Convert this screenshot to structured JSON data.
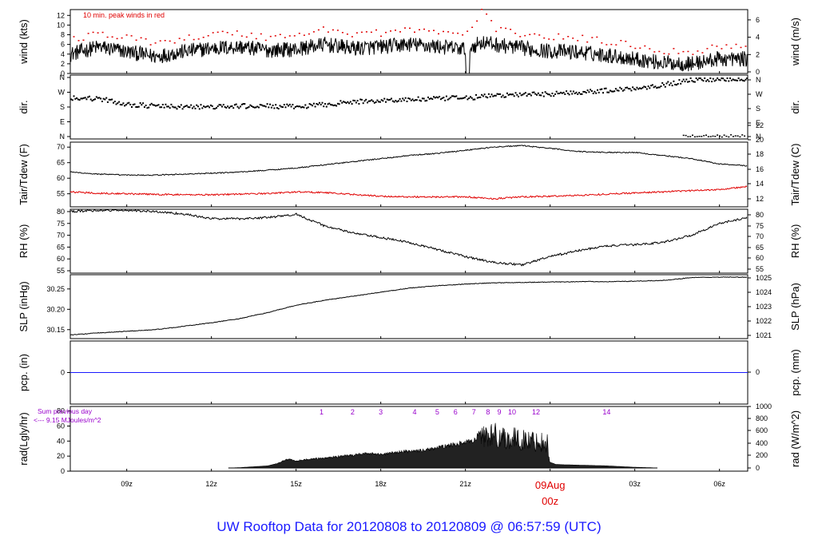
{
  "page_title": "UW Rooftop Data for 20120808  to  20120809 @ 06:57:59  (UTC)",
  "colors": {
    "trace": "#000000",
    "dewpoint": "#e00000",
    "peak": "#e00000",
    "precip": "#1a1aff",
    "rad_text": "#9900cc",
    "title": "#1a1aff",
    "date": "#e00000"
  },
  "chart_data": {
    "type": "line",
    "x_axis": {
      "range_hours": [
        7.0,
        31.0
      ],
      "ticks": [
        {
          "hour": 9,
          "label": "09z"
        },
        {
          "hour": 12,
          "label": "12z"
        },
        {
          "hour": 15,
          "label": "15z"
        },
        {
          "hour": 18,
          "label": "18z"
        },
        {
          "hour": 21,
          "label": "21z"
        },
        {
          "hour": 24,
          "label": "00z",
          "date_label": "09Aug"
        },
        {
          "hour": 27,
          "label": "03z"
        },
        {
          "hour": 30,
          "label": "06z"
        }
      ]
    },
    "panels": [
      {
        "id": "wind",
        "left_label": "wind (kts)",
        "right_label": "wind (m/s)",
        "left_ticks": [
          0,
          2,
          4,
          6,
          8,
          10,
          12
        ],
        "right_ticks": [
          0,
          2,
          4,
          6
        ],
        "ylim": [
          0,
          13.2
        ],
        "annotation": "10 min. peak winds in red",
        "series": [
          {
            "name": "wind speed",
            "x": [
              7,
              8,
              9,
              10,
              11,
              12,
              13,
              14,
              15,
              16,
              17,
              18,
              19,
              20,
              21,
              21.6,
              22,
              23,
              24,
              25,
              26,
              27,
              28,
              29,
              30,
              31
            ],
            "y": [
              4,
              5.5,
              4.5,
              3.5,
              4.5,
              5.2,
              5.5,
              4.8,
              5,
              6,
              5.2,
              5.5,
              6,
              5.6,
              5,
              6.5,
              6,
              5.2,
              4.6,
              4.4,
              3.8,
              3,
              2.2,
              2,
              3,
              3
            ]
          },
          {
            "name": "peak wind",
            "x": [
              7,
              8,
              9,
              10,
              11,
              12,
              13,
              14,
              15,
              16,
              17,
              18,
              19,
              20,
              21,
              21.6,
              22,
              23,
              24,
              25,
              26,
              27,
              28,
              29,
              30,
              31
            ],
            "y": [
              7,
              8.2,
              7.2,
              6.5,
              7.2,
              8,
              8.2,
              7.4,
              8,
              9,
              8.2,
              8.4,
              9,
              8.5,
              8,
              13.2,
              9,
              8.2,
              7.5,
              7.2,
              6.5,
              5.8,
              4.6,
              4.4,
              5.6,
              5.6
            ]
          }
        ]
      },
      {
        "id": "direction",
        "left_label": "dir.",
        "right_label": "dir.",
        "left_ticks": [
          "N",
          "E",
          "S",
          "W",
          "N"
        ],
        "right_ticks": [
          "N",
          "E",
          "S",
          "W",
          "N"
        ],
        "ylim": [
          0,
          360
        ],
        "series": [
          {
            "name": "wind direction",
            "x": [
              7,
              8,
              9,
              10,
              11,
              12,
              13,
              14,
              15,
              16,
              17,
              18,
              19,
              20,
              21,
              22,
              23,
              24,
              25,
              26,
              27,
              28,
              29,
              30,
              31
            ],
            "y": [
              240,
              235,
              200,
              190,
              185,
              185,
              190,
              190,
              185,
              200,
              215,
              225,
              230,
              235,
              240,
              255,
              260,
              265,
              275,
              285,
              300,
              320,
              350,
              355,
              355
            ]
          }
        ]
      },
      {
        "id": "temperature",
        "left_label": "Tair/Tdew (F)",
        "right_label": "Tair/Tdew (C)",
        "left_ticks": [
          55,
          60,
          65,
          70
        ],
        "right_ticks": [
          12,
          14,
          16,
          18,
          20,
          22
        ],
        "ylim": [
          50.8,
          71.6
        ],
        "series": [
          {
            "name": "Tair",
            "x": [
              7,
              8,
              9,
              10,
              11,
              12,
              13,
              14,
              15,
              16,
              17,
              18,
              19,
              20,
              21,
              22,
              23,
              24,
              25,
              26,
              27,
              28,
              29,
              30,
              31
            ],
            "y": [
              62,
              61.3,
              61,
              61,
              61.3,
              61.6,
              62,
              62.6,
              63.3,
              64.3,
              65.3,
              66.3,
              67.3,
              68,
              69,
              70,
              70.5,
              69.6,
              68.6,
              68.3,
              68.3,
              67.3,
              66.3,
              64.6,
              64
            ]
          },
          {
            "name": "Tdew",
            "x": [
              7,
              8,
              9,
              10,
              11,
              12,
              13,
              14,
              15,
              16,
              17,
              18,
              19,
              20,
              21,
              22,
              23,
              24,
              25,
              26,
              27,
              28,
              29,
              30,
              31
            ],
            "y": [
              55.6,
              55.2,
              55,
              54.8,
              54.7,
              54.7,
              54.9,
              55.1,
              55.6,
              55.4,
              54.8,
              54.2,
              54,
              54,
              54,
              53.4,
              54,
              54.2,
              54.5,
              54.9,
              55.3,
              55.6,
              56,
              56.4,
              57.3
            ]
          }
        ]
      },
      {
        "id": "rh",
        "left_label": "RH (%)",
        "right_label": "RH (%)",
        "left_ticks": [
          55,
          60,
          65,
          70,
          75,
          80
        ],
        "right_ticks": [
          55,
          60,
          65,
          70,
          75,
          80
        ],
        "ylim": [
          54,
          81
        ],
        "series": [
          {
            "name": "relative humidity",
            "x": [
              7,
              8,
              9,
              10,
              11,
              12,
              13,
              14,
              14.8,
              15,
              16,
              17,
              18,
              19,
              20,
              21,
              22,
              23,
              24,
              25,
              26,
              27,
              28,
              29,
              30,
              31
            ],
            "y": [
              80,
              80.5,
              80.5,
              80,
              79,
              77,
              77,
              77.5,
              78.5,
              79,
              74,
              71,
              69,
              67,
              64,
              61,
              58.5,
              57.5,
              61,
              63.5,
              65.5,
              66,
              67,
              70,
              75,
              77.5
            ]
          }
        ]
      },
      {
        "id": "pressure",
        "left_label": "SLP (inHg)",
        "right_label": "SLP (hPa)",
        "left_ticks": [
          "30.15",
          "30.20",
          "30.25"
        ],
        "right_ticks": [
          1021,
          1022,
          1023,
          1024,
          1025
        ],
        "ylim": [
          30.128,
          30.285
        ],
        "series": [
          {
            "name": "sea level pressure",
            "x": [
              7,
              8,
              9,
              10,
              11,
              12,
              13,
              14,
              15,
              16,
              17,
              18,
              19,
              20,
              21,
              22,
              23,
              24,
              25,
              26,
              27,
              28,
              29,
              30,
              31
            ],
            "y": [
              30.137,
              30.142,
              30.146,
              30.15,
              30.158,
              30.167,
              30.177,
              30.192,
              30.21,
              30.222,
              30.232,
              30.242,
              30.252,
              30.258,
              30.262,
              30.265,
              30.266,
              30.267,
              30.268,
              30.268,
              30.269,
              30.271,
              30.278,
              30.279,
              30.279
            ]
          }
        ]
      },
      {
        "id": "precip",
        "left_label": "pcp. (in)",
        "right_label": "pcp. (mm)",
        "left_ticks": [
          0
        ],
        "right_ticks": [
          0
        ],
        "ylim": [
          -1,
          1
        ],
        "series": [
          {
            "name": "precipitation",
            "x": [
              7,
              31
            ],
            "y": [
              0,
              0
            ]
          }
        ]
      },
      {
        "id": "radiation",
        "left_label": "rad(Lgly/hr)",
        "right_label": "rad (W/m^2)",
        "left_ticks": [
          0,
          20,
          40,
          60,
          80
        ],
        "right_ticks": [
          0,
          200,
          400,
          600,
          800,
          1000
        ],
        "ylim": [
          0,
          86
        ],
        "annotation_line1": "Sum previous day",
        "annotation_line2": "<--- 9.15 MJoules/m^2",
        "hour_markers": [
          {
            "hour": 15.9,
            "label": "1"
          },
          {
            "hour": 17.0,
            "label": "2"
          },
          {
            "hour": 18.0,
            "label": "3"
          },
          {
            "hour": 19.2,
            "label": "4"
          },
          {
            "hour": 20.0,
            "label": "5"
          },
          {
            "hour": 20.65,
            "label": "6"
          },
          {
            "hour": 21.3,
            "label": "7"
          },
          {
            "hour": 21.8,
            "label": "8"
          },
          {
            "hour": 22.2,
            "label": "9"
          },
          {
            "hour": 22.65,
            "label": "10"
          },
          {
            "hour": 23.5,
            "label": "12"
          },
          {
            "hour": 26.0,
            "label": "14"
          }
        ],
        "series": [
          {
            "name": "solar radiation",
            "x": [
              12.6,
              13,
              14,
              14.3,
              14.7,
              15,
              15.5,
              16,
              16.5,
              17,
              17.5,
              18,
              18.5,
              19,
              19.5,
              20,
              20.5,
              21,
              21.3,
              21.6,
              22,
              22.3,
              22.6,
              23,
              23.5,
              23.9,
              24.0,
              24.2,
              24.5,
              25,
              25.5,
              26,
              26.5,
              27,
              27.5,
              27.8
            ],
            "y": [
              0,
              0.5,
              3,
              6,
              13,
              11,
              13,
              15,
              17,
              19,
              22,
              20,
              23,
              25,
              26,
              30,
              34,
              38,
              40,
              60,
              62,
              58,
              55,
              52,
              50,
              48,
              8,
              5,
              4.5,
              4,
              3.5,
              3,
              2,
              1,
              0.5,
              0
            ]
          }
        ]
      }
    ]
  }
}
